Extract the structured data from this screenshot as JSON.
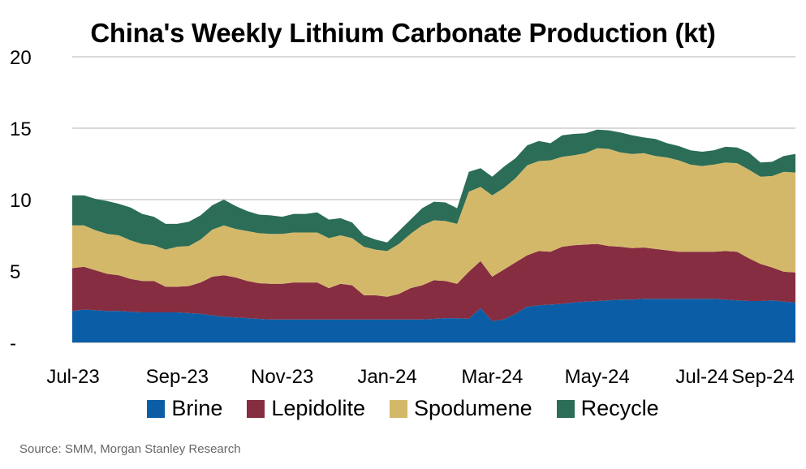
{
  "chart_data": {
    "type": "area",
    "stacked": true,
    "title": "China's Weekly Lithium Carbonate Production (kt)",
    "ylim": [
      0,
      20
    ],
    "yticks": [
      {
        "value": 0,
        "label": "-"
      },
      {
        "value": 5,
        "label": "5"
      },
      {
        "value": 10,
        "label": "10"
      },
      {
        "value": 15,
        "label": "15"
      },
      {
        "value": 20,
        "label": "20"
      }
    ],
    "xticks": [
      "Jul-23",
      "Sep-23",
      "Nov-23",
      "Jan-24",
      "Mar-24",
      "May-24",
      "Jul-24",
      "Sep-24"
    ],
    "xtick_week_index": [
      0,
      9,
      18,
      27,
      36,
      45,
      54,
      63
    ],
    "grid": true,
    "legend_position": "bottom",
    "series": [
      {
        "name": "Brine",
        "color": "#0b5ea6",
        "values": [
          2.2,
          2.3,
          2.25,
          2.2,
          2.2,
          2.15,
          2.1,
          2.1,
          2.1,
          2.1,
          2.05,
          2.0,
          1.9,
          1.8,
          1.75,
          1.7,
          1.65,
          1.6,
          1.6,
          1.6,
          1.6,
          1.6,
          1.6,
          1.6,
          1.6,
          1.6,
          1.6,
          1.6,
          1.6,
          1.6,
          1.6,
          1.65,
          1.7,
          1.7,
          1.65,
          2.4,
          1.5,
          1.6,
          2.0,
          2.5,
          2.6,
          2.65,
          2.7,
          2.8,
          2.85,
          2.9,
          2.95,
          3.0,
          3.0,
          3.05,
          3.05,
          3.05,
          3.05,
          3.05,
          3.05,
          3.05,
          3.0,
          2.95,
          2.9,
          2.9,
          2.95,
          2.85,
          2.8
        ]
      },
      {
        "name": "Lepidolite",
        "color": "#862d42",
        "values": [
          3.0,
          3.0,
          2.8,
          2.6,
          2.5,
          2.3,
          2.2,
          2.2,
          1.8,
          1.8,
          1.9,
          2.2,
          2.7,
          2.9,
          2.8,
          2.6,
          2.5,
          2.5,
          2.5,
          2.6,
          2.6,
          2.6,
          2.2,
          2.5,
          2.4,
          1.7,
          1.7,
          1.6,
          1.8,
          2.2,
          2.4,
          2.7,
          2.6,
          2.4,
          3.3,
          3.3,
          3.1,
          3.5,
          3.6,
          3.6,
          3.8,
          3.7,
          4.0,
          4.0,
          4.0,
          4.0,
          3.8,
          3.7,
          3.6,
          3.6,
          3.5,
          3.4,
          3.3,
          3.3,
          3.3,
          3.3,
          3.4,
          3.4,
          3.0,
          2.6,
          2.3,
          2.1,
          2.1
        ]
      },
      {
        "name": "Spodumene",
        "color": "#d4b86a",
        "values": [
          3.0,
          2.9,
          2.8,
          2.8,
          2.8,
          2.7,
          2.6,
          2.5,
          2.6,
          2.8,
          2.8,
          3.0,
          3.3,
          3.5,
          3.4,
          3.5,
          3.5,
          3.5,
          3.5,
          3.5,
          3.5,
          3.5,
          3.5,
          3.4,
          3.3,
          3.4,
          3.2,
          3.2,
          3.5,
          3.8,
          4.2,
          4.2,
          4.2,
          4.2,
          5.6,
          5.2,
          5.7,
          5.7,
          5.9,
          6.3,
          6.3,
          6.4,
          6.3,
          6.3,
          6.4,
          6.7,
          6.8,
          6.6,
          6.6,
          6.6,
          6.5,
          6.5,
          6.4,
          6.1,
          6.0,
          6.1,
          6.2,
          6.2,
          6.2,
          6.1,
          6.4,
          7.0,
          7.0
        ]
      },
      {
        "name": "Recycle",
        "color": "#2b6d57",
        "values": [
          2.1,
          2.1,
          2.2,
          2.3,
          2.2,
          2.3,
          2.1,
          2.0,
          1.8,
          1.6,
          1.7,
          1.7,
          1.7,
          1.8,
          1.6,
          1.4,
          1.3,
          1.3,
          1.2,
          1.3,
          1.3,
          1.4,
          1.3,
          1.2,
          1.1,
          0.8,
          0.7,
          0.6,
          0.9,
          1.0,
          1.2,
          1.3,
          1.3,
          1.1,
          1.4,
          1.3,
          1.3,
          1.5,
          1.4,
          1.4,
          1.4,
          1.2,
          1.5,
          1.5,
          1.4,
          1.3,
          1.3,
          1.4,
          1.3,
          1.1,
          1.2,
          1.0,
          1.0,
          1.0,
          1.0,
          1.0,
          1.1,
          1.1,
          1.2,
          1.0,
          1.0,
          1.1,
          1.3
        ]
      }
    ]
  },
  "source": "Source: SMM, Morgan Stanley Research"
}
